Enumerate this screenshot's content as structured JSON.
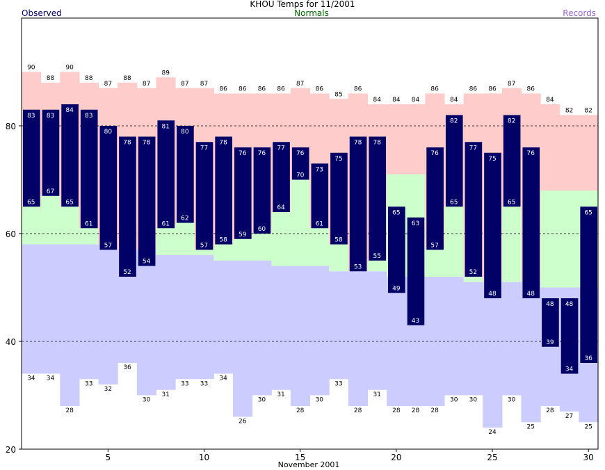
{
  "chart_data": {
    "type": "bar",
    "title": "KHOU Temps for 11/2001",
    "xlabel": "November 2001",
    "legend": {
      "observed": "Observed",
      "normals": "Normals",
      "records": "Records"
    },
    "days": [
      1,
      2,
      3,
      4,
      5,
      6,
      7,
      8,
      9,
      10,
      11,
      12,
      13,
      14,
      15,
      16,
      17,
      18,
      19,
      20,
      21,
      22,
      23,
      24,
      25,
      26,
      27,
      28,
      29,
      30
    ],
    "x_ticks": [
      5,
      10,
      15,
      20,
      25,
      30
    ],
    "y_ticks": [
      20,
      40,
      60,
      80
    ],
    "ylim": [
      20,
      100
    ],
    "gridlines_dashed": [
      40,
      60,
      80
    ],
    "series": [
      {
        "name": "Record High",
        "values": [
          90,
          88,
          90,
          88,
          87,
          88,
          87,
          89,
          87,
          87,
          86,
          86,
          86,
          86,
          87,
          86,
          85,
          86,
          84,
          84,
          84,
          86,
          84,
          86,
          86,
          87,
          86,
          84,
          82,
          82
        ]
      },
      {
        "name": "Normal High",
        "values": [
          65,
          67,
          65,
          61,
          57,
          52,
          54,
          61,
          62,
          57,
          58,
          59,
          60,
          64,
          70,
          61,
          58,
          53,
          55,
          71,
          71,
          57,
          65,
          52,
          48,
          65,
          48,
          68,
          68,
          68
        ]
      },
      {
        "name": "Normal Low",
        "values": [
          58,
          58,
          58,
          58,
          58,
          57,
          57,
          56,
          56,
          56,
          55,
          55,
          55,
          54,
          54,
          54,
          53,
          53,
          53,
          52,
          52,
          52,
          52,
          51,
          51,
          51,
          51,
          50,
          50,
          50
        ]
      },
      {
        "name": "Record Low",
        "values": [
          34,
          34,
          28,
          33,
          32,
          36,
          30,
          31,
          33,
          33,
          34,
          26,
          30,
          31,
          28,
          30,
          33,
          28,
          31,
          28,
          28,
          28,
          30,
          30,
          24,
          30,
          25,
          28,
          27,
          25
        ]
      },
      {
        "name": "Observed High",
        "values": [
          83,
          83,
          84,
          83,
          80,
          78,
          78,
          81,
          80,
          77,
          78,
          76,
          76,
          77,
          76,
          73,
          75,
          78,
          78,
          65,
          63,
          76,
          82,
          77,
          75,
          82,
          76,
          48,
          48,
          65
        ]
      },
      {
        "name": "Observed Low",
        "values": [
          65,
          67,
          65,
          61,
          57,
          52,
          54,
          61,
          62,
          57,
          58,
          59,
          60,
          64,
          70,
          61,
          58,
          53,
          55,
          49,
          43,
          57,
          65,
          52,
          48,
          65,
          48,
          39,
          34,
          36
        ]
      }
    ],
    "colors": {
      "observed": "#000066",
      "observed_label": "#ffffff",
      "normal_band": "#ccffcc",
      "record_high_band": "#ffcccc",
      "record_low_band": "#ccccff",
      "normals_text": "#006600",
      "records_text": "#9966cc",
      "frame": "#000000"
    }
  }
}
